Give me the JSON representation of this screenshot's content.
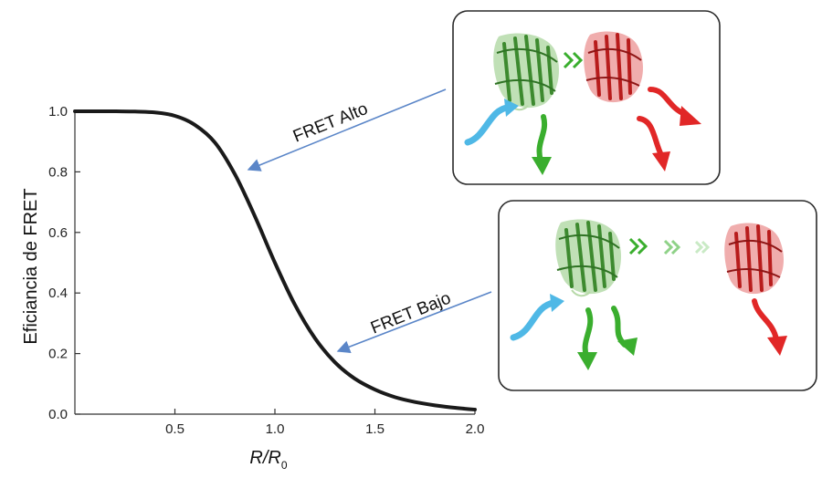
{
  "chart_data": {
    "type": "line",
    "title": "",
    "ylabel": "Eficiancia de FRET",
    "xlabel_main": "R/R",
    "xlabel_sub": "0",
    "xlim": [
      0.0,
      2.0
    ],
    "ylim": [
      0.0,
      1.0
    ],
    "xticks": [
      "0.5",
      "1.0",
      "1.5",
      "2.0"
    ],
    "yticks": [
      "0.0",
      "0.2",
      "0.4",
      "0.6",
      "0.8",
      "1.0"
    ],
    "grid": false,
    "series": [
      {
        "x": [
          0.0,
          0.1,
          0.2,
          0.3,
          0.4,
          0.5,
          0.6,
          0.7,
          0.8,
          0.9,
          1.0,
          1.1,
          1.2,
          1.3,
          1.4,
          1.5,
          1.6,
          1.7,
          1.8,
          1.9,
          2.0
        ],
        "y": [
          1.0,
          1.0,
          1.0,
          0.999,
          0.996,
          0.985,
          0.955,
          0.897,
          0.792,
          0.653,
          0.5,
          0.361,
          0.251,
          0.171,
          0.117,
          0.081,
          0.056,
          0.04,
          0.029,
          0.021,
          0.015
        ]
      }
    ],
    "annotations": [
      {
        "text": "FRET Alto",
        "points_to_x": 0.82
      },
      {
        "text": "FRET Bajo",
        "points_to_x": 1.3
      }
    ]
  },
  "colors": {
    "curve": "#1a1a1a",
    "arrow": "#5b86c8",
    "donor_protein": "#4a9a3a",
    "acceptor_protein": "#c42121",
    "excitation": "#4fb8e6",
    "donor_emission": "#3aae2e",
    "acceptor_emission": "#e12727"
  },
  "panels": {
    "high": {
      "transfer_chevrons": 2
    },
    "low": {
      "transfer_chevrons": 3
    }
  }
}
